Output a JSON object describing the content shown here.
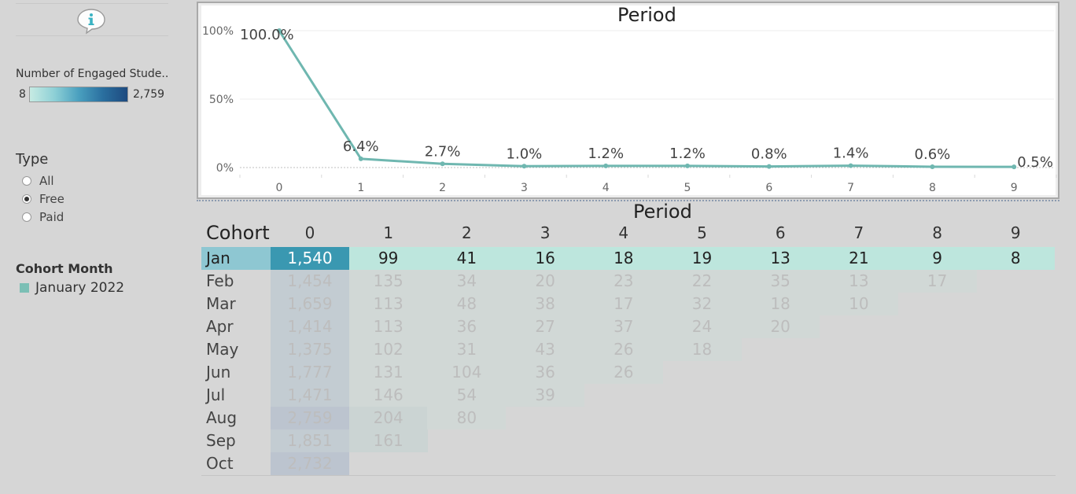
{
  "sidebar": {
    "info_icon": "info-speech-bubble-icon",
    "legend": {
      "title": "Number of Engaged Stude..",
      "min": "8",
      "max": "2,759"
    },
    "type_filter": {
      "title": "Type",
      "options": [
        {
          "label": "All",
          "selected": false
        },
        {
          "label": "Free",
          "selected": true
        },
        {
          "label": "Paid",
          "selected": false
        }
      ]
    },
    "cohort_filter": {
      "title": "Cohort Month",
      "value": "January 2022",
      "swatch_color": "#7bbfb5"
    }
  },
  "line_chart": {
    "title": "Period",
    "y_ticks": [
      "100%",
      "50%",
      "0%"
    ],
    "line_color": "#6fb7b0"
  },
  "chart_data": {
    "type": "line",
    "title": "Period",
    "x": [
      0,
      1,
      2,
      3,
      4,
      5,
      6,
      7,
      8,
      9
    ],
    "series": [
      {
        "values": [
          100.0,
          6.4,
          2.7,
          1.0,
          1.2,
          1.2,
          0.8,
          1.4,
          0.6,
          0.5
        ]
      }
    ],
    "point_labels": [
      "100.0%",
      "6.4%",
      "2.7%",
      "1.0%",
      "1.2%",
      "1.2%",
      "0.8%",
      "1.4%",
      "0.6%",
      "0.5%"
    ],
    "ylim": [
      0,
      100
    ],
    "y_ticks": [
      "100%",
      "50%",
      "0%"
    ],
    "grid": true
  },
  "table": {
    "title": "Period",
    "row_header": "Cohort",
    "columns": [
      "0",
      "1",
      "2",
      "3",
      "4",
      "5",
      "6",
      "7",
      "8",
      "9"
    ],
    "rows": [
      {
        "label": "Jan",
        "values": [
          "1,540",
          "99",
          "41",
          "16",
          "18",
          "19",
          "13",
          "21",
          "9",
          "8"
        ],
        "selected": true
      },
      {
        "label": "Feb",
        "values": [
          "1,454",
          "135",
          "34",
          "20",
          "23",
          "22",
          "35",
          "13",
          "17"
        ]
      },
      {
        "label": "Mar",
        "values": [
          "1,659",
          "113",
          "48",
          "38",
          "17",
          "32",
          "18",
          "10"
        ]
      },
      {
        "label": "Apr",
        "values": [
          "1,414",
          "113",
          "36",
          "27",
          "37",
          "24",
          "20"
        ]
      },
      {
        "label": "May",
        "values": [
          "1,375",
          "102",
          "31",
          "43",
          "26",
          "18"
        ]
      },
      {
        "label": "Jun",
        "values": [
          "1,777",
          "131",
          "104",
          "36",
          "26"
        ]
      },
      {
        "label": "Jul",
        "values": [
          "1,471",
          "146",
          "54",
          "39"
        ]
      },
      {
        "label": "Aug",
        "values": [
          "2,759",
          "204",
          "80"
        ]
      },
      {
        "label": "Sep",
        "values": [
          "1,851",
          "161"
        ]
      },
      {
        "label": "Oct",
        "values": [
          "2,732"
        ]
      }
    ]
  }
}
